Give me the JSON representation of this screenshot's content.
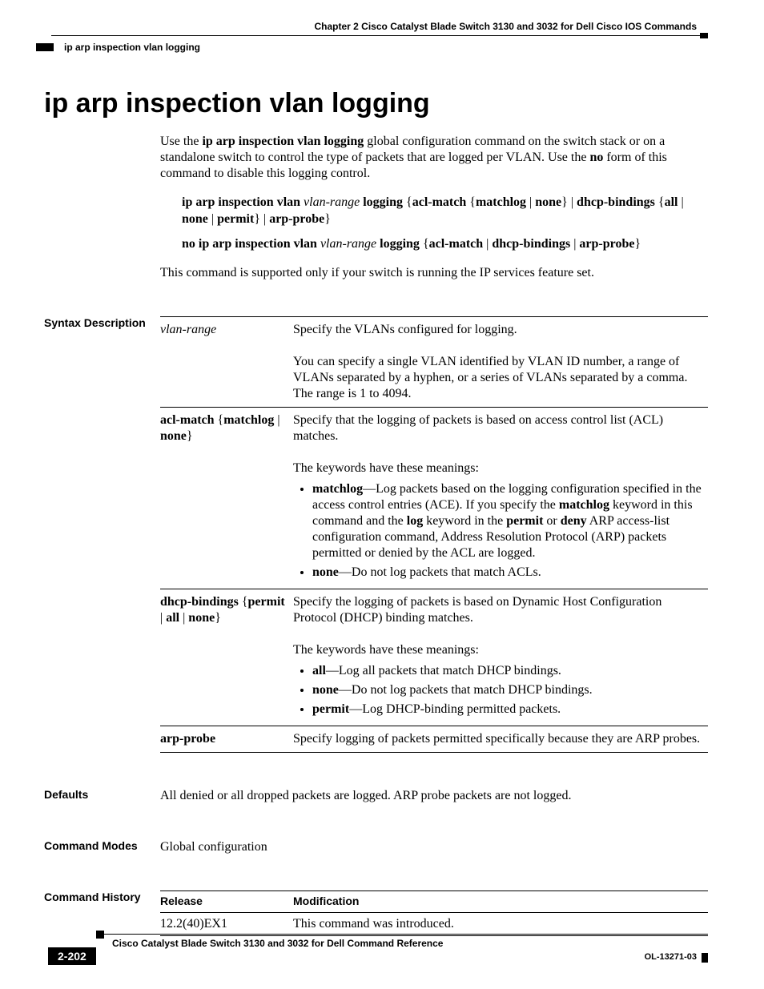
{
  "runningHead": {
    "chapterRight": "Chapter 2    Cisco Catalyst Blade Switch 3130 and 3032 for Dell Cisco IOS Commands",
    "leftCrumb": "ip arp inspection vlan logging"
  },
  "title": "ip arp inspection vlan logging",
  "intro": {
    "para_html": "Use the <span class=\"b\">ip arp inspection vlan logging</span> global configuration command on the switch stack or on a standalone switch to control the type of packets that are logged per VLAN. Use the <span class=\"b\">no</span> form of this command to disable this logging control."
  },
  "syntax": {
    "line1_html": "<span class=\"b\">ip arp inspection vlan</span> <span class=\"i\">vlan-range</span> <span class=\"b\">logging</span> {<span class=\"b\">acl-match</span> {<span class=\"b\">matchlog</span> | <span class=\"b\">none</span>} | <span class=\"b\">dhcp-bindings</span> {<span class=\"b\">all</span> | <span class=\"b\">none</span> | <span class=\"b\">permit</span>} | <span class=\"b\">arp-probe</span>}",
    "line2_html": "<span class=\"b\">no ip arp inspection vlan</span> <span class=\"i\">vlan-range</span> <span class=\"b\">logging</span> {<span class=\"b\">acl-match</span> | <span class=\"b\">dhcp-bindings</span> | <span class=\"b\">arp-probe</span>}",
    "note": "This command is supported only if your switch is running the IP services feature set."
  },
  "sections": {
    "syntaxDescription": {
      "label": "Syntax Description",
      "rows": [
        {
          "param_html": "<span class=\"i\">vlan-range</span>",
          "desc_html": "Specify the VLANs configured for logging.<br><br>You can specify a single VLAN identified by VLAN ID number, a range of VLANs separated by a hyphen, or a series of VLANs separated by a comma. The range is 1 to 4094."
        },
        {
          "param_html": "<span class=\"b\">acl-match</span> {<span class=\"b\">matchlog</span> | <span class=\"b\">none</span>}",
          "desc_html": "Specify that the logging of packets is based on access control list (ACL) matches.<br><br>The keywords have these meanings:<ul><li><span class=\"b\">matchlog</span>—Log packets based on the logging configuration specified in the access control entries (ACE). If you specify the <span class=\"b\">matchlog</span> keyword in this command and the <span class=\"b\">log</span> keyword in the <span class=\"b\">permit</span> or <span class=\"b\">deny</span> ARP access-list configuration command, Address Resolution Protocol (ARP) packets permitted or denied by the ACL are logged.</li><li><span class=\"b\">none</span>—Do not log packets that match ACLs.</li></ul>"
        },
        {
          "param_html": "<span class=\"b\">dhcp-bindings</span> {<span class=\"b\">permit</span> | <span class=\"b\">all</span> | <span class=\"b\">none</span>}",
          "desc_html": "Specify the logging of packets is based on Dynamic Host Configuration Protocol (DHCP) binding matches.<br><br>The keywords have these meanings:<ul><li><span class=\"b\">all</span>—Log all packets that match DHCP bindings.</li><li><span class=\"b\">none</span>—Do not log packets that match DHCP bindings.</li><li><span class=\"b\">permit</span>—Log DHCP-binding permitted packets.</li></ul>"
        },
        {
          "param_html": "<span class=\"b\">arp-probe</span>",
          "desc_html": "Specify logging of packets permitted specifically because they are ARP probes."
        }
      ]
    },
    "defaults": {
      "label": "Defaults",
      "text": "All denied or all dropped packets are logged. ARP probe packets are not logged."
    },
    "commandModes": {
      "label": "Command Modes",
      "text": "Global configuration"
    },
    "commandHistory": {
      "label": "Command History",
      "headers": {
        "release": "Release",
        "modification": "Modification"
      },
      "rows": [
        {
          "release": "12.2(40)EX1",
          "modification": "This command was introduced."
        }
      ]
    }
  },
  "footer": {
    "docTitle": "Cisco Catalyst Blade Switch 3130 and 3032 for Dell Command Reference",
    "pageNum": "2-202",
    "docId": "OL-13271-03"
  },
  "colors": {
    "text": "#000000",
    "background": "#ffffff",
    "rules": "#000000",
    "pageBoxBg": "#000000",
    "pageBoxFg": "#ffffff"
  },
  "typography": {
    "body_family": "Times New Roman",
    "heading_family": "Arial",
    "title_size_pt": 26,
    "body_size_pt": 12,
    "section_label_size_pt": 11,
    "footer_size_pt": 9
  }
}
